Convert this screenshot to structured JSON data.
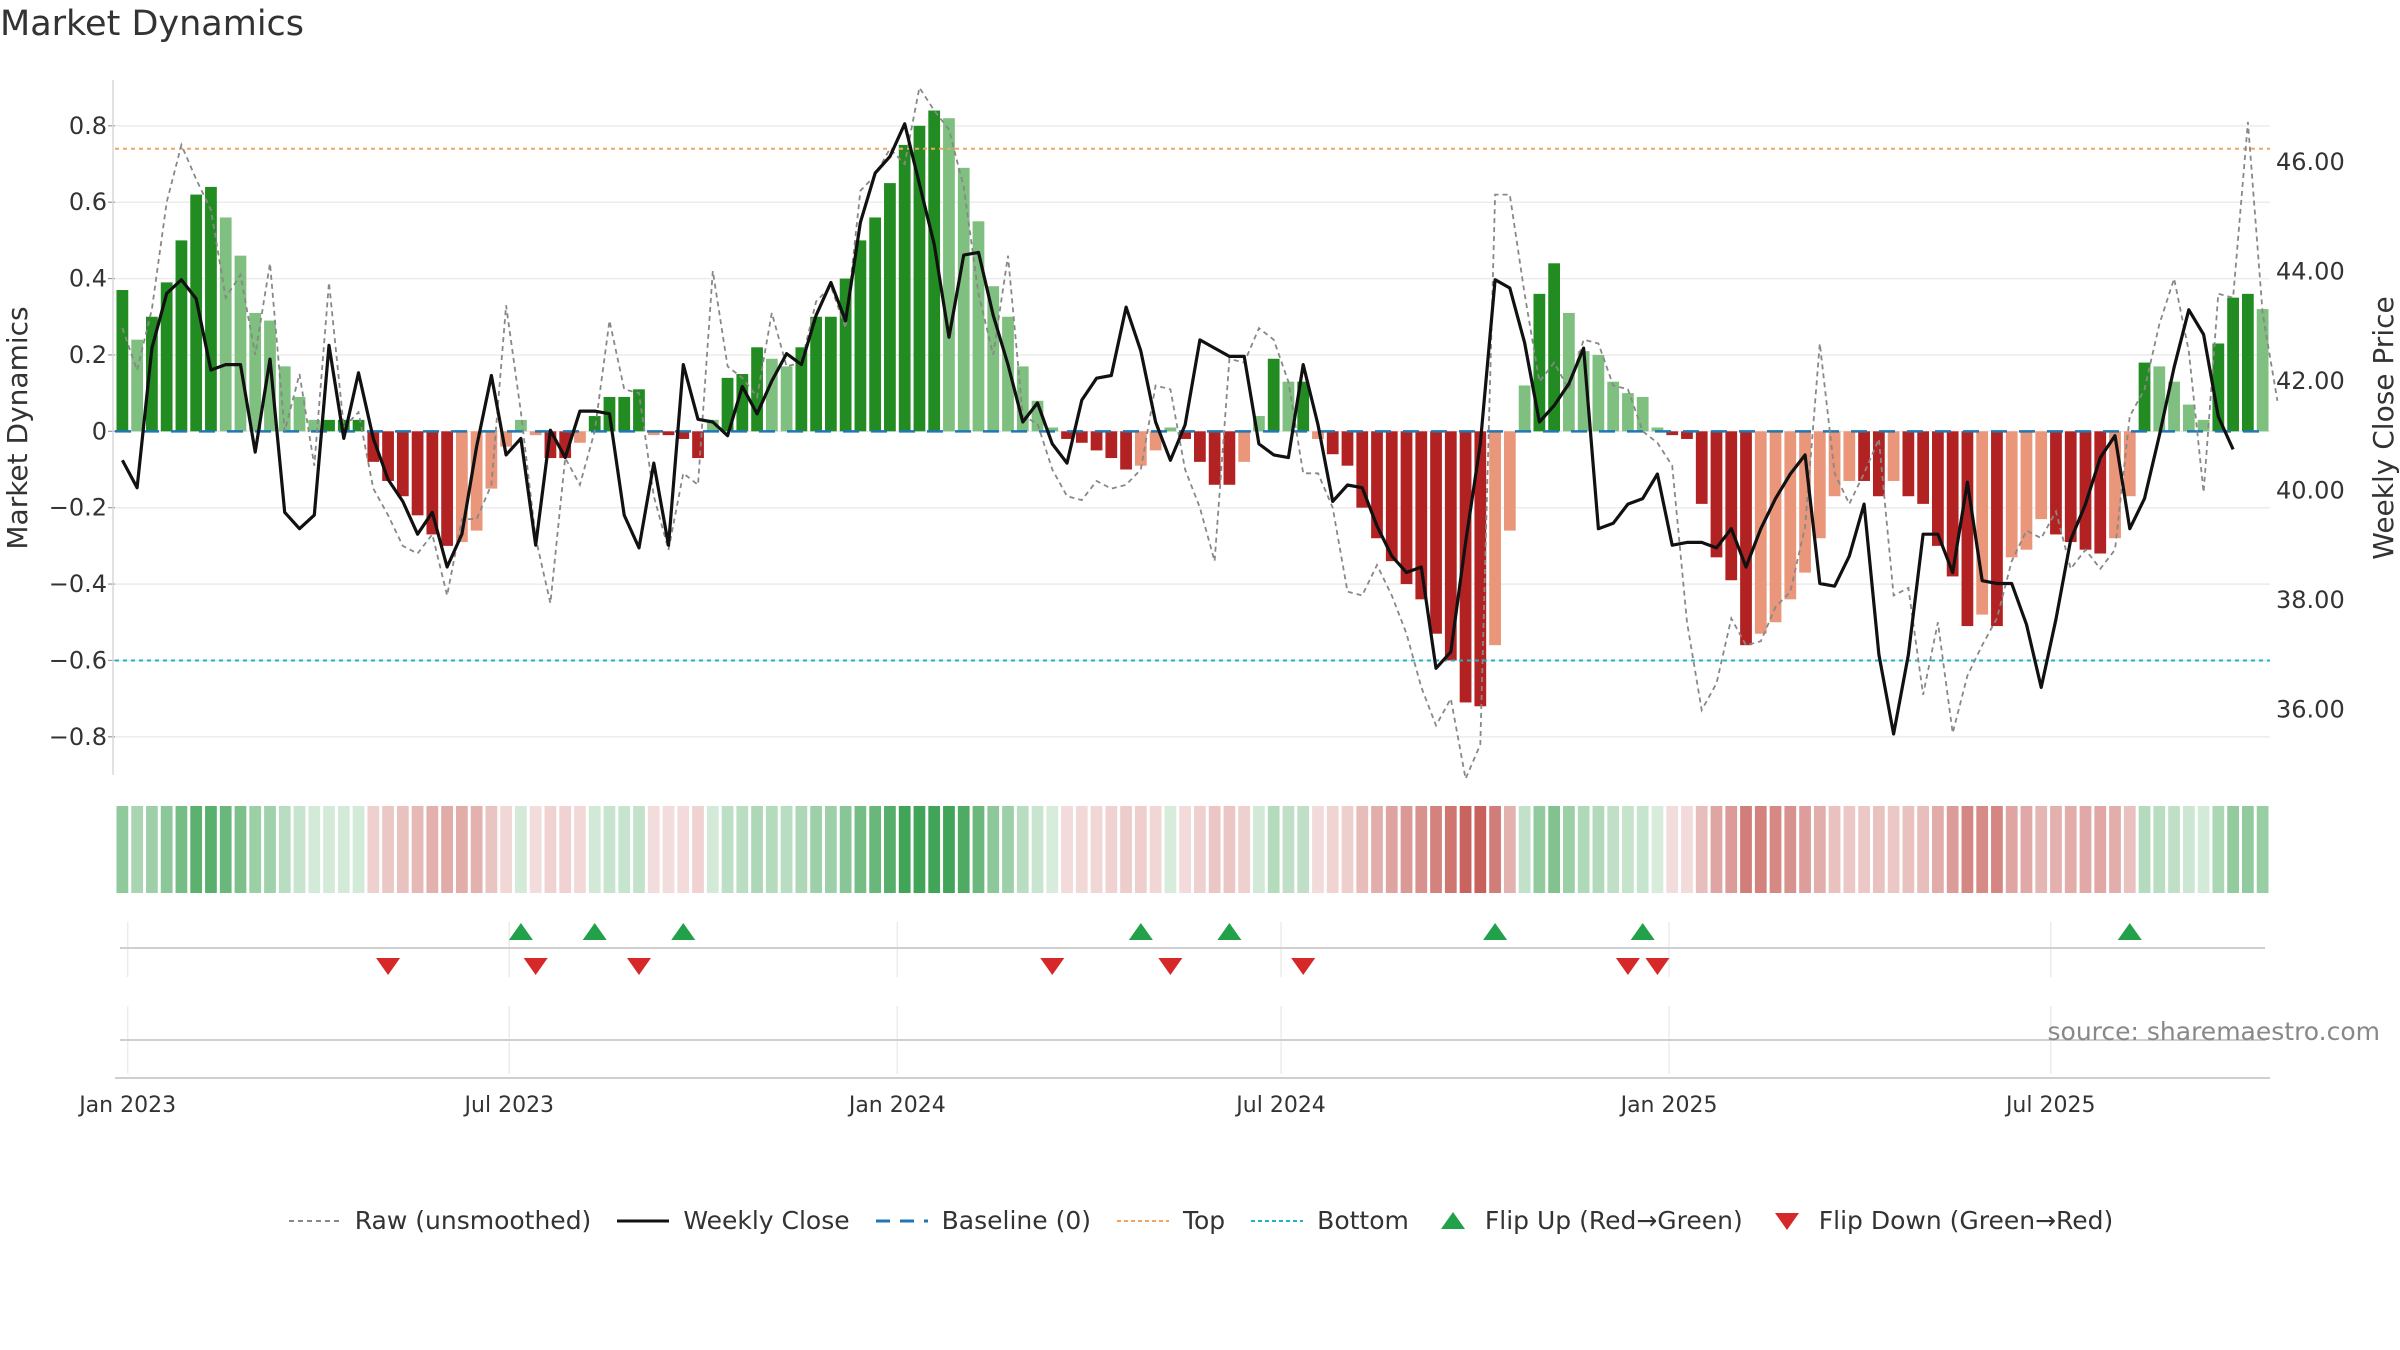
{
  "title": "Market Dynamics",
  "source": "source: sharemaestro.com",
  "chart_data": {
    "type": "bar",
    "left_axis": {
      "label": "Market Dynamics",
      "ylim": [
        -0.9,
        0.92
      ],
      "ticks": [
        0.8,
        0.6,
        0.4,
        0.2,
        0,
        -0.2,
        -0.4,
        -0.6,
        -0.8
      ],
      "tick_labels": [
        "0.8",
        "0.6",
        "0.4",
        "0.2",
        "0",
        "−0.2",
        "−0.4",
        "−0.6",
        "−0.8"
      ]
    },
    "right_axis": {
      "label": "Weekly Close Price",
      "ylim": [
        34.8,
        47.5
      ],
      "ticks": [
        46,
        44,
        42,
        40,
        38,
        36
      ],
      "tick_labels": [
        "46.00",
        "44.00",
        "42.00",
        "40.00",
        "38.00",
        "36.00"
      ]
    },
    "x": {
      "start": "2022-12-26",
      "step_days": 7,
      "ticks": [
        "2023-01-01",
        "2023-07-01",
        "2024-01-01",
        "2024-07-01",
        "2025-01-01",
        "2025-07-01"
      ],
      "tick_labels": [
        "Jan 2023",
        "Jul 2023",
        "Jan 2024",
        "Jul 2024",
        "Jan 2025",
        "Jul 2025"
      ]
    },
    "reference_lines": {
      "baseline": 0,
      "top": 0.74,
      "bottom": -0.6
    },
    "series": [
      {
        "name": "Market Dynamics",
        "kind": "bar",
        "values": [
          0.37,
          0.24,
          0.3,
          0.39,
          0.5,
          0.62,
          0.64,
          0.56,
          0.46,
          0.31,
          0.29,
          0.17,
          0.09,
          0.03,
          0.03,
          0.03,
          0.03,
          -0.08,
          -0.13,
          -0.17,
          -0.22,
          -0.27,
          -0.3,
          -0.29,
          -0.26,
          -0.15,
          -0.04,
          0.03,
          -0.01,
          -0.07,
          -0.07,
          -0.03,
          0.04,
          0.09,
          0.09,
          0.11,
          -0.01,
          -0.01,
          -0.02,
          -0.07,
          0.03,
          0.14,
          0.15,
          0.22,
          0.19,
          0.17,
          0.22,
          0.3,
          0.3,
          0.4,
          0.5,
          0.56,
          0.65,
          0.75,
          0.8,
          0.84,
          0.82,
          0.69,
          0.55,
          0.38,
          0.3,
          0.17,
          0.08,
          0.01,
          -0.02,
          -0.03,
          -0.05,
          -0.07,
          -0.1,
          -0.09,
          -0.05,
          0.01,
          -0.02,
          -0.08,
          -0.14,
          -0.14,
          -0.08,
          0.04,
          0.19,
          0.13,
          0.13,
          -0.02,
          -0.06,
          -0.09,
          -0.2,
          -0.28,
          -0.34,
          -0.4,
          -0.44,
          -0.53,
          -0.6,
          -0.71,
          -0.72,
          -0.56,
          -0.26,
          0.12,
          0.36,
          0.44,
          0.31,
          0.21,
          0.2,
          0.13,
          0.1,
          0.09,
          0.01,
          -0.01,
          -0.02,
          -0.19,
          -0.33,
          -0.39,
          -0.56,
          -0.53,
          -0.5,
          -0.44,
          -0.37,
          -0.28,
          -0.17,
          -0.13,
          -0.13,
          -0.17,
          -0.13,
          -0.17,
          -0.19,
          -0.3,
          -0.38,
          -0.51,
          -0.48,
          -0.51,
          -0.33,
          -0.31,
          -0.23,
          -0.27,
          -0.29,
          -0.31,
          -0.32,
          -0.28,
          -0.17,
          0.18,
          0.17,
          0.13,
          0.07,
          0.03,
          0.23,
          0.35,
          0.36,
          0.32
        ]
      },
      {
        "name": "Raw (unsmoothed)",
        "kind": "line",
        "values": [
          0.27,
          0.16,
          0.32,
          0.6,
          0.75,
          0.66,
          0.58,
          0.35,
          0.41,
          0.2,
          0.44,
          0.0,
          0.15,
          -0.09,
          0.39,
          0.01,
          0.05,
          -0.15,
          -0.22,
          -0.3,
          -0.32,
          -0.27,
          -0.43,
          -0.23,
          -0.23,
          -0.14,
          0.33,
          0.05,
          -0.28,
          -0.45,
          -0.07,
          -0.14,
          0.0,
          0.29,
          0.11,
          0.1,
          -0.17,
          -0.31,
          -0.11,
          -0.14,
          0.42,
          0.17,
          0.14,
          0.09,
          0.31,
          0.17,
          0.18,
          0.34,
          0.38,
          0.27,
          0.63,
          0.67,
          0.74,
          0.7,
          0.9,
          0.84,
          0.79,
          0.64,
          0.36,
          0.2,
          0.46,
          0.04,
          0.02,
          -0.1,
          -0.17,
          -0.18,
          -0.13,
          -0.15,
          -0.14,
          -0.1,
          0.12,
          0.11,
          -0.1,
          -0.2,
          -0.34,
          0.19,
          0.18,
          0.27,
          0.24,
          0.13,
          -0.11,
          -0.11,
          -0.2,
          -0.42,
          -0.43,
          -0.35,
          -0.43,
          -0.53,
          -0.67,
          -0.77,
          -0.7,
          -0.91,
          -0.82,
          0.62,
          0.62,
          0.36,
          0.13,
          0.18,
          0.11,
          0.24,
          0.23,
          0.12,
          0.11,
          0.0,
          -0.03,
          -0.09,
          -0.5,
          -0.73,
          -0.66,
          -0.49,
          -0.56,
          -0.55,
          -0.46,
          -0.42,
          -0.25,
          0.23,
          -0.11,
          -0.19,
          -0.11,
          -0.02,
          -0.43,
          -0.41,
          -0.69,
          -0.5,
          -0.79,
          -0.64,
          -0.56,
          -0.49,
          -0.34,
          -0.26,
          -0.28,
          -0.21,
          -0.36,
          -0.31,
          -0.36,
          -0.31,
          0.04,
          0.11,
          0.28,
          0.4,
          0.21,
          -0.16,
          0.36,
          0.35,
          0.81,
          0.31,
          0.08
        ]
      },
      {
        "name": "Weekly Close",
        "kind": "line",
        "axis": "right",
        "values": [
          40.55,
          40.05,
          42.6,
          43.6,
          43.85,
          43.5,
          42.2,
          42.3,
          42.3,
          40.7,
          42.4,
          39.6,
          39.3,
          39.55,
          42.65,
          40.95,
          42.15,
          40.95,
          40.2,
          39.8,
          39.2,
          39.6,
          38.6,
          39.2,
          40.8,
          42.1,
          40.65,
          40.95,
          39.0,
          41.1,
          40.6,
          41.45,
          41.45,
          41.4,
          39.55,
          38.95,
          40.5,
          39.0,
          42.3,
          41.3,
          41.25,
          41.0,
          41.9,
          41.4,
          42.0,
          42.5,
          42.3,
          43.2,
          43.8,
          43.1,
          44.9,
          45.8,
          46.1,
          46.7,
          45.6,
          44.5,
          42.8,
          44.3,
          44.35,
          43.2,
          42.3,
          41.25,
          41.6,
          40.85,
          40.5,
          41.65,
          42.05,
          42.1,
          43.35,
          42.55,
          41.25,
          40.55,
          41.2,
          42.75,
          42.6,
          42.45,
          42.45,
          40.85,
          40.65,
          40.6,
          42.3,
          41.2,
          39.8,
          40.1,
          40.05,
          39.35,
          38.8,
          38.5,
          38.6,
          36.75,
          37.05,
          39.05,
          40.85,
          43.85,
          43.7,
          42.7,
          41.25,
          41.55,
          41.95,
          42.6,
          39.3,
          39.4,
          39.75,
          39.85,
          40.3,
          39.0,
          39.05,
          39.05,
          38.95,
          39.3,
          38.6,
          39.3,
          39.85,
          40.3,
          40.65,
          38.3,
          38.25,
          38.8,
          39.75,
          37.0,
          35.55,
          37.0,
          39.2,
          39.2,
          38.5,
          40.15,
          38.35,
          38.3,
          38.3,
          37.55,
          36.4,
          37.65,
          39.1,
          39.75,
          40.6,
          41.0,
          39.3,
          39.85,
          41.0,
          42.25,
          43.3,
          42.85,
          41.35,
          40.75
        ]
      }
    ],
    "regime_strip": {
      "label": ""
    },
    "flip_up_weeks": [
      27,
      32,
      38,
      69,
      75,
      93,
      103,
      136
    ],
    "flip_down_weeks": [
      18,
      28,
      35,
      63,
      71,
      80,
      102,
      104
    ]
  },
  "legend": {
    "raw": "Raw (unsmoothed)",
    "close": "Weekly Close",
    "baseline": "Baseline (0)",
    "top": "Top",
    "bottom": "Bottom",
    "flip_up": "Flip Up (Red→Green)",
    "flip_down": "Flip Down (Green→Red)"
  },
  "colors": {
    "strong_green": "#228b22",
    "light_green": "#7fbf7f",
    "strong_red": "#b22222",
    "light_red": "#e9967a",
    "top_line": "#f4a460",
    "bottom_line": "#20b2c0",
    "baseline": "#1f77b4",
    "close": "#111111",
    "raw": "#888888",
    "flip_up": "#22a04a",
    "flip_down": "#d62828"
  }
}
